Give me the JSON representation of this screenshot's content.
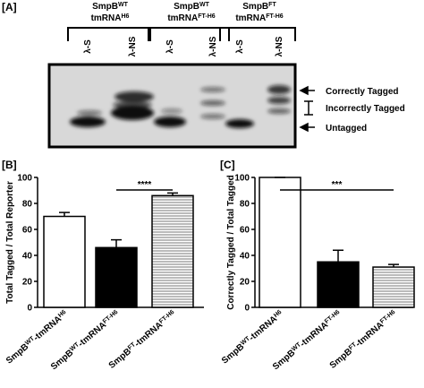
{
  "panel_a": {
    "label": "[A]",
    "groups": [
      {
        "line1": [
          "SmpB",
          "WT"
        ],
        "line2": [
          "tmRNA",
          "H6"
        ],
        "lanes": [
          "λ-S",
          "λ-NS"
        ]
      },
      {
        "line1": [
          "SmpB",
          "WT"
        ],
        "line2": [
          "tmRNA",
          "FT-H6"
        ],
        "lanes": [
          "λ-S",
          "λ-NS"
        ]
      },
      {
        "line1": [
          "SmpB",
          "FT"
        ],
        "line2": [
          "tmRNA",
          "FT-H6"
        ],
        "lanes": [
          "λ-S",
          "λ-NS"
        ]
      }
    ],
    "band_labels": [
      "Correctly Tagged",
      "Incorrectly Tagged",
      "Untagged"
    ]
  },
  "chart_data": [
    {
      "type": "bar",
      "panel_label": "[B]",
      "y_label": "Total Tagged / Total Reporter",
      "categories": [
        [
          "SmpB",
          "WT",
          "-tmRNA",
          "H6"
        ],
        [
          "SmpB",
          "WT",
          "-tmRNA",
          "FT-H6"
        ],
        [
          "SmpB",
          "FT",
          "-tmRNA",
          "FT-H6"
        ]
      ],
      "values": [
        70,
        46,
        86
      ],
      "errors": [
        3,
        6,
        2
      ],
      "colors": [
        "#ffffff",
        "#000000",
        "#808080"
      ],
      "hatch": [
        false,
        false,
        true
      ],
      "ylim": [
        0,
        100
      ],
      "yticks": [
        0,
        20,
        40,
        60,
        80,
        100
      ],
      "annotations": [
        {
          "text": "****",
          "from": 1,
          "to": 2
        }
      ]
    },
    {
      "type": "bar",
      "panel_label": "[C]",
      "y_label": "Correctly Tagged / Total Tagged",
      "categories": [
        [
          "SmpB",
          "WT",
          "-tmRNA",
          "H6"
        ],
        [
          "SmpB",
          "WT",
          "-tmRNA",
          "FT-H6"
        ],
        [
          "SmpB",
          "FT",
          "-tmRNA",
          "FT-H6"
        ]
      ],
      "values": [
        100,
        35,
        31
      ],
      "errors": [
        0,
        9,
        2
      ],
      "colors": [
        "#ffffff",
        "#000000",
        "#808080"
      ],
      "hatch": [
        false,
        false,
        true
      ],
      "ylim": [
        0,
        100
      ],
      "yticks": [
        0,
        20,
        40,
        60,
        80,
        100
      ],
      "annotations": [
        {
          "text": "***",
          "from": 0,
          "to": 2
        }
      ]
    }
  ]
}
